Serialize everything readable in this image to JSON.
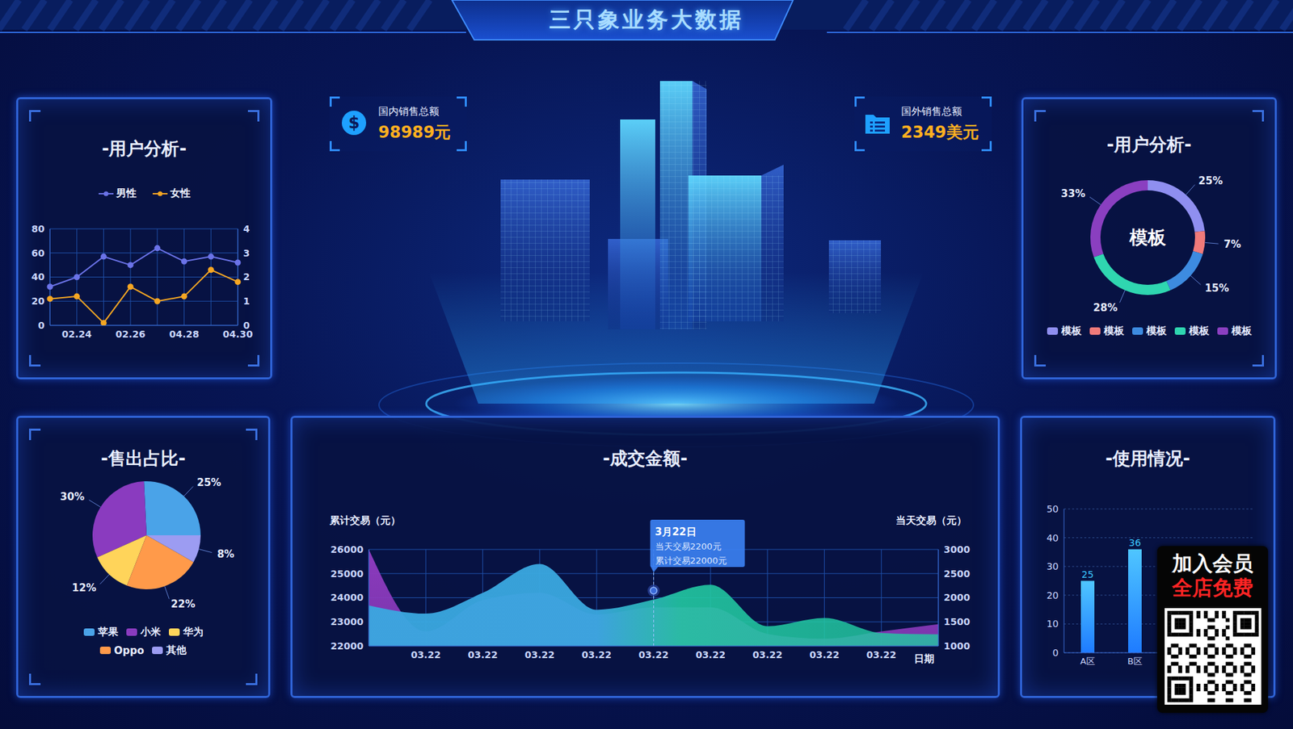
{
  "header": {
    "title": "三只象业务大数据"
  },
  "stats": [
    {
      "icon": "$",
      "label": "国内销售总额",
      "value": "98989元"
    },
    {
      "label": "国外销售总额",
      "value": "2349美元"
    }
  ],
  "chart_data": [
    {
      "type": "line",
      "title": "-用户分析-",
      "categories": [
        null,
        "02.24",
        null,
        "02.26",
        null,
        "04.28",
        null,
        "04.30"
      ],
      "series": [
        {
          "name": "男性",
          "color": "#6b73e8",
          "marker": "circle",
          "values": [
            32,
            40,
            57,
            50,
            64,
            53,
            57,
            52
          ]
        },
        {
          "name": "女性",
          "color": "#f5a623",
          "marker": "circle",
          "axis": "y2",
          "values": [
            1.1,
            1.2,
            0.1,
            1.6,
            1.0,
            1.2,
            2.3,
            1.8
          ]
        }
      ],
      "ylim": [
        0,
        80
      ],
      "yticks": [
        0,
        20,
        40,
        60,
        80
      ],
      "y2lim": [
        0,
        4
      ],
      "y2ticks": [
        0,
        1,
        2,
        3,
        4
      ],
      "grid": true,
      "legend": "top"
    },
    {
      "type": "donut",
      "title": "-用户分析-",
      "annotation": "模板",
      "categories": [
        "模板",
        "模板",
        "模板",
        "模板",
        "模板"
      ],
      "values": [
        25,
        7,
        15,
        28,
        33
      ],
      "value_labels": [
        "25%",
        "7%",
        "15%",
        "28%",
        "33%"
      ],
      "colors": [
        "#8f8ff0",
        "#f07a7a",
        "#3d8be0",
        "#2fd6b0",
        "#8a3fc0"
      ],
      "data_labels": true,
      "legend": "bottom"
    },
    {
      "type": "pie",
      "title": "-售出占比-",
      "categories": [
        "苹果",
        "小米",
        "华为",
        "Oppo",
        "其他"
      ],
      "values": [
        25,
        30,
        12,
        22,
        8
      ],
      "value_labels": [
        "25%",
        "30%",
        "12%",
        "22%",
        "8%"
      ],
      "colors": [
        "#4aa3e8",
        "#8a3bbf",
        "#ffd45a",
        "#ff9a4a",
        "#9c9cf2"
      ],
      "data_labels": true,
      "legend": "bottom"
    },
    {
      "type": "area",
      "title": "-成交金额-",
      "categories": [
        null,
        "03.22",
        "03.22",
        "03.22",
        "03.22",
        "03.22",
        "03.22",
        "03.22",
        "03.22",
        "03.22",
        null
      ],
      "xlabel": "日期",
      "ylabel": "累计交易（元）",
      "y2label": "当天交易（元）",
      "series": [
        {
          "color": "#8e3bbf",
          "values": [
            26000,
            22600,
            23900,
            24200,
            23300,
            23600,
            23600,
            22500,
            22300,
            22600,
            22900
          ]
        },
        {
          "color": "#3aa8e0",
          "axis": "y2",
          "values": [
            1840,
            1670,
            2100,
            2700,
            1750,
            1960,
            2270,
            1410,
            1580,
            1270,
            1240
          ]
        }
      ],
      "ylim": [
        22000,
        26000
      ],
      "yticks": [
        22000,
        23000,
        24000,
        25000,
        26000
      ],
      "y2lim": [
        1000,
        3000
      ],
      "y2ticks": [
        1000,
        1500,
        2000,
        2500,
        3000
      ],
      "grid": true,
      "annotations": [
        "3月22日",
        "当天交易2200元",
        "累计交易22000元"
      ]
    },
    {
      "type": "bar",
      "title": "-使用情况-",
      "categories": [
        "A区",
        "B区",
        null,
        null
      ],
      "values": [
        25,
        36,
        null,
        null
      ],
      "color": "#1e7bff",
      "ylim": [
        0,
        50
      ],
      "yticks": [
        0,
        10,
        20,
        30,
        40,
        50
      ],
      "grid": true,
      "data_labels": true
    }
  ],
  "badge": {
    "lines": [
      "加入会员",
      "全店免费"
    ]
  }
}
